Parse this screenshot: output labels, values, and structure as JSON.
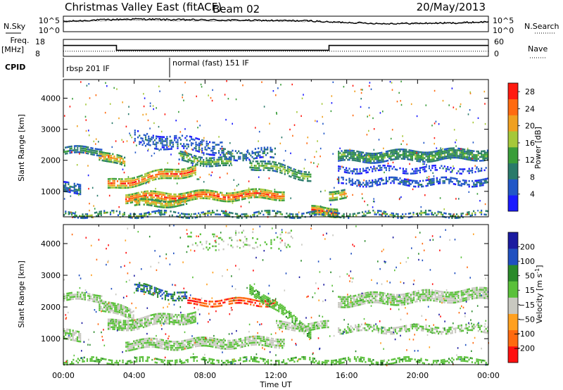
{
  "header": {
    "title": "Christmas Valley East (fitACF)",
    "beam": "Beam 02",
    "date": "20/May/2013"
  },
  "strip_labels": {
    "nsky": "N.Sky",
    "nsearch": "N.Search",
    "freq_line1": "Freq.",
    "freq_line2": "[MHz]",
    "nave": "Nave",
    "cpid": "CPID",
    "noise_ticks_left": [
      "10^5",
      "10^0"
    ],
    "noise_ticks_right": [
      "10^5",
      "10^0"
    ],
    "freq_ticks": [
      "18",
      "8"
    ],
    "nave_ticks": [
      "60",
      "0"
    ],
    "cpid_modes": [
      {
        "start_hour": 0,
        "label": "rbsp 201 IF"
      },
      {
        "start_hour": 6,
        "label": "normal (fast) 151 IF"
      }
    ]
  },
  "chart_data": [
    {
      "type": "line",
      "panel": "noise",
      "series": [
        {
          "name": "N.Sky",
          "x": [
            0,
            2,
            4,
            6,
            8,
            10,
            12,
            14,
            15,
            16,
            18,
            20,
            22,
            24
          ],
          "y": [
            3.3,
            3.8,
            4.1,
            3.9,
            3.8,
            3.7,
            3.6,
            3.5,
            3.1,
            3.0,
            2.6,
            2.7,
            2.8,
            3.2
          ]
        },
        {
          "name": "N.Search",
          "x": [
            0,
            2,
            4,
            6,
            8,
            10,
            12,
            14,
            15,
            16,
            18,
            20,
            22,
            24
          ],
          "y": [
            3.1,
            3.5,
            3.8,
            3.6,
            3.5,
            3.5,
            3.4,
            3.3,
            3.0,
            2.9,
            2.5,
            2.6,
            2.7,
            3.0
          ]
        }
      ]
    },
    {
      "type": "line",
      "panel": "frequency-nave",
      "series": [
        {
          "name": "Freq.",
          "x": [
            0,
            3,
            3,
            15,
            15,
            24
          ],
          "y": [
            15,
            15,
            11,
            11,
            15,
            15
          ]
        },
        {
          "name": "Nave",
          "x": [
            0,
            24
          ],
          "y": [
            18,
            18
          ]
        }
      ]
    },
    {
      "type": "heatmap",
      "panel": "power",
      "xlabel": "Time UT",
      "ylabel": "Slant Range [km]",
      "xlim": [
        0,
        24
      ],
      "ylim": [
        180,
        4600
      ],
      "xticks": [
        "00:00",
        "04:00",
        "08:00",
        "12:00",
        "16:00",
        "20:00",
        "00:00"
      ],
      "yticks": [
        1000,
        2000,
        3000,
        4000
      ],
      "colorbar": {
        "label": "Power [dB]",
        "ticks": [
          4,
          8,
          12,
          16,
          20,
          24,
          28
        ],
        "range": [
          0,
          30
        ],
        "colors": [
          "#1a1aff",
          "#2257c7",
          "#2a7a6a",
          "#3a9d3a",
          "#a5c83a",
          "#f0a020",
          "#ff6a10",
          "#ff1a10"
        ]
      },
      "bands": [
        {
          "start": 0,
          "end": 2.2,
          "center": 2300,
          "width": 200,
          "power": 12,
          "density": 0.8
        },
        {
          "start": 2.0,
          "end": 3.5,
          "center": [
            2200,
            1900
          ],
          "width": 260,
          "power": 22,
          "density": 0.85
        },
        {
          "start": 0,
          "end": 1.0,
          "center": 1100,
          "width": 300,
          "power": 10,
          "density": 0.8
        },
        {
          "start": 2.5,
          "end": 7.5,
          "center": [
            1200,
            1700
          ],
          "width": 280,
          "power": 26,
          "density": 0.9
        },
        {
          "start": 3.5,
          "end": 12.5,
          "center": [
            800,
            900
          ],
          "width": 260,
          "power": 27,
          "density": 0.9
        },
        {
          "start": 4.0,
          "end": 7.0,
          "center": [
            600,
            650
          ],
          "width": 180,
          "power": 22,
          "density": 0.8
        },
        {
          "start": 4.0,
          "end": 9.0,
          "center": [
            2700,
            2400
          ],
          "width": 400,
          "power": 8,
          "density": 0.45
        },
        {
          "start": 6.5,
          "end": 9.5,
          "center": [
            2100,
            1900
          ],
          "width": 260,
          "power": 16,
          "density": 0.7
        },
        {
          "start": 10.5,
          "end": 14.0,
          "center": [
            1900,
            1500
          ],
          "width": 280,
          "power": 16,
          "density": 0.75
        },
        {
          "start": 9.0,
          "end": 12.0,
          "center": 2200,
          "width": 300,
          "power": 10,
          "density": 0.5
        },
        {
          "start": 14.0,
          "end": 15.5,
          "center": 350,
          "width": 250,
          "power": 26,
          "density": 0.95
        },
        {
          "start": 15.0,
          "end": 16.0,
          "center": 900,
          "width": 260,
          "power": 22,
          "density": 0.8
        },
        {
          "start": 15.5,
          "end": 24.0,
          "center": [
            2100,
            2200
          ],
          "width": 300,
          "power": 14,
          "density": 0.85
        },
        {
          "start": 15.5,
          "end": 24.0,
          "center": 1300,
          "width": 180,
          "power": 8,
          "density": 0.6
        },
        {
          "start": 15.5,
          "end": 24.0,
          "center": 1700,
          "width": 140,
          "power": 6,
          "density": 0.5
        },
        {
          "start": 0,
          "end": 24.0,
          "center": 260,
          "width": 120,
          "power": 14,
          "density": 0.5
        }
      ]
    },
    {
      "type": "heatmap",
      "panel": "velocity",
      "xlabel": "Time UT",
      "ylabel": "Slant Range [km]",
      "xlim": [
        0,
        24
      ],
      "ylim": [
        180,
        4600
      ],
      "xticks": [
        "00:00",
        "04:00",
        "08:00",
        "12:00",
        "16:00",
        "20:00",
        "00:00"
      ],
      "yticks": [
        1000,
        2000,
        3000,
        4000
      ],
      "colorbar": {
        "label": "Velocity [m s^-1]",
        "ticks": [
          200,
          100,
          50,
          15,
          -15,
          -50,
          -100,
          -200
        ],
        "range": [
          -250,
          250
        ],
        "colors": [
          "#ff1010",
          "#ff6a10",
          "#ffa020",
          "#c8c8c0",
          "#5ac03a",
          "#2a8a2a",
          "#2050c0",
          "#1a1aa0"
        ]
      },
      "bands": [
        {
          "start": 0,
          "end": 2.2,
          "center": 2300,
          "width": 200,
          "velocity": 0,
          "density": 0.8
        },
        {
          "start": 2.0,
          "end": 4.0,
          "center": [
            2100,
            1700
          ],
          "width": 300,
          "velocity": 0,
          "density": 0.85
        },
        {
          "start": 0,
          "end": 1.0,
          "center": 1100,
          "width": 300,
          "velocity": 0,
          "density": 0.8
        },
        {
          "start": 2.5,
          "end": 7.5,
          "center": [
            1400,
            1700
          ],
          "width": 300,
          "velocity": 0,
          "density": 0.85
        },
        {
          "start": 3.5,
          "end": 12.5,
          "center": [
            800,
            900
          ],
          "width": 260,
          "velocity": 0,
          "density": 0.85
        },
        {
          "start": 4.0,
          "end": 7.0,
          "center": [
            2600,
            2300
          ],
          "width": 250,
          "velocity": 120,
          "density": 0.55
        },
        {
          "start": 7.0,
          "end": 12.0,
          "center": 2150,
          "width": 160,
          "velocity": -180,
          "density": 0.8
        },
        {
          "start": 10.5,
          "end": 14.0,
          "center": [
            2600,
            1200
          ],
          "width": 250,
          "velocity": 40,
          "density": 0.7
        },
        {
          "start": 12.0,
          "end": 15.0,
          "center": 1400,
          "width": 200,
          "velocity": 0,
          "density": 0.8
        },
        {
          "start": 15.5,
          "end": 24.0,
          "center": [
            2200,
            2400
          ],
          "width": 320,
          "velocity": 0,
          "density": 0.85
        },
        {
          "start": 15.5,
          "end": 24.0,
          "center": 1300,
          "width": 180,
          "velocity": 0,
          "density": 0.6
        },
        {
          "start": 0,
          "end": 24.0,
          "center": 300,
          "width": 120,
          "velocity": 40,
          "density": 0.5
        },
        {
          "start": 7.0,
          "end": 13.0,
          "center": 4100,
          "width": 500,
          "velocity": 0,
          "density": 0.12
        }
      ]
    }
  ]
}
